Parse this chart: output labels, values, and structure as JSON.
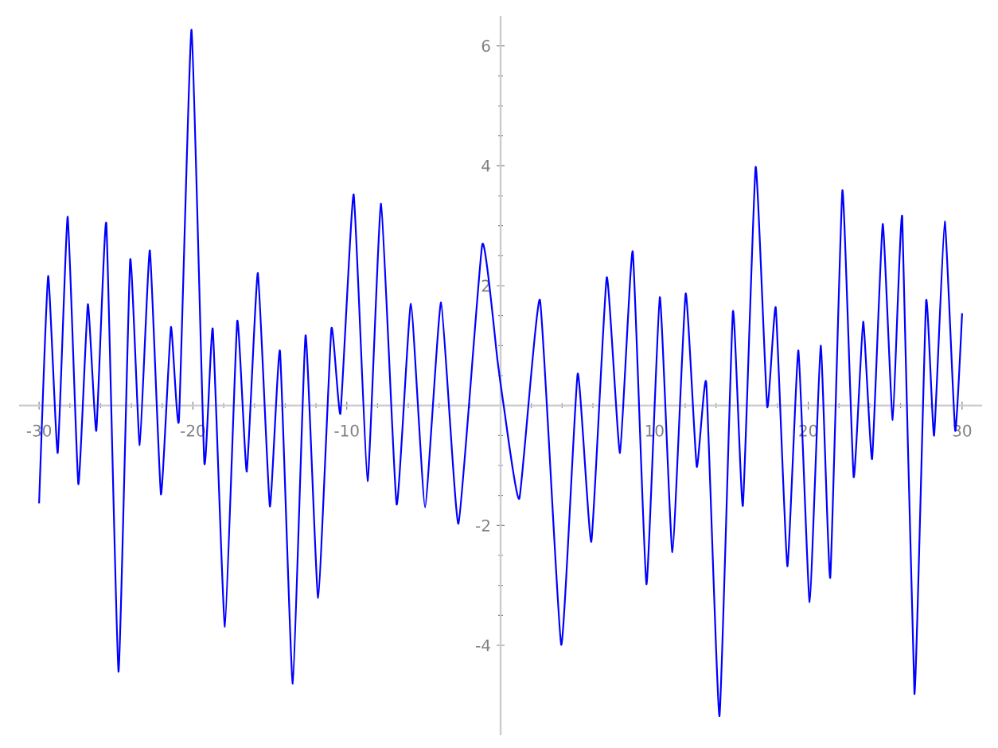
{
  "chart_data": {
    "type": "line",
    "color": "#0000ff",
    "xlim": [
      -31.3,
      31.3
    ],
    "ylim": [
      -5.5,
      6.5
    ],
    "xticks": [
      -30,
      -20,
      -10,
      {
        "value": 0,
        "label": null
      },
      10,
      20,
      30
    ],
    "yticks": [
      -4,
      -2,
      {
        "value": 0,
        "label": null
      },
      2,
      4,
      6
    ],
    "x": [
      -30.0,
      -29.41,
      -28.79,
      -28.14,
      -27.45,
      -26.83,
      -26.28,
      -25.63,
      -24.84,
      -24.08,
      -23.46,
      -22.8,
      -22.08,
      -21.43,
      -20.91,
      -20.09,
      -19.26,
      -18.71,
      -17.92,
      -17.12,
      -16.5,
      -15.78,
      -15.0,
      -14.34,
      -13.51,
      -12.68,
      -11.86,
      -11.0,
      -10.41,
      -9.55,
      -8.65,
      -7.77,
      -6.76,
      -5.83,
      -4.91,
      -3.87,
      -2.74,
      -1.19,
      -0.2,
      0.2,
      1.22,
      2.56,
      3.94,
      5.01,
      5.9,
      6.9,
      7.76,
      8.59,
      9.48,
      10.35,
      11.17,
      12.03,
      12.75,
      13.37,
      14.23,
      15.1,
      15.75,
      16.58,
      17.33,
      17.89,
      18.64,
      19.36,
      20.09,
      20.81,
      21.43,
      22.22,
      22.95,
      23.57,
      24.15,
      24.84,
      25.49,
      26.11,
      26.9,
      27.66,
      28.18,
      28.87,
      29.55,
      30.0
    ],
    "values": [
      -1.63,
      2.16,
      -0.79,
      3.15,
      -1.31,
      1.69,
      -0.42,
      3.04,
      -4.44,
      2.43,
      -0.66,
      2.59,
      -1.48,
      1.31,
      -0.25,
      6.27,
      -0.95,
      1.28,
      -3.69,
      1.41,
      -1.1,
      2.21,
      -1.68,
      0.91,
      -4.64,
      1.17,
      -3.21,
      1.28,
      -0.13,
      3.52,
      -1.26,
      3.37,
      -1.65,
      1.7,
      -1.7,
      1.72,
      -1.97,
      2.69,
      0.75,
      0.0,
      -1.55,
      1.76,
      -3.99,
      0.53,
      -2.27,
      2.14,
      -0.79,
      2.57,
      -2.98,
      1.81,
      -2.45,
      1.87,
      -1.02,
      0.38,
      -5.18,
      1.57,
      -1.67,
      3.98,
      -0.02,
      1.63,
      -2.68,
      0.92,
      -3.28,
      1.0,
      -2.87,
      3.59,
      -1.19,
      1.4,
      -0.89,
      3.03,
      -0.24,
      3.15,
      -4.81,
      1.74,
      -0.5,
      3.07,
      -0.42,
      1.54
    ]
  }
}
